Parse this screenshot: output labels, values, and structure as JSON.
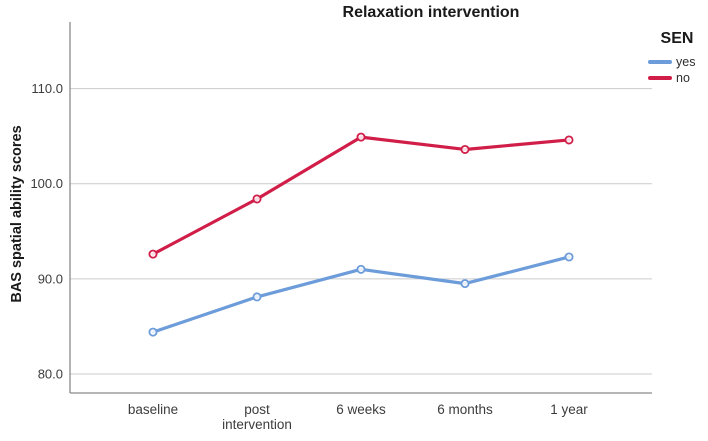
{
  "title": "Relaxation intervention",
  "legend": {
    "title": "SEN",
    "items": [
      {
        "label": "yes",
        "color": "#6c9cd9"
      },
      {
        "label": "no",
        "color": "#d11e49"
      }
    ]
  },
  "y_axis": {
    "title": "BAS spatial ability scores"
  },
  "colors": {
    "gridline": "#cbcbcb",
    "axis_line": "#8a8a8a",
    "tick_text": "#3c3c3c",
    "series_yes": "#6c9cd9",
    "series_no": "#d11e49"
  },
  "chart_data": {
    "type": "line",
    "title": "Relaxation intervention",
    "categories": [
      "baseline",
      "post intervention",
      "6 weeks",
      "6 months",
      "1 year"
    ],
    "category_lines": [
      [
        "baseline"
      ],
      [
        "post",
        "intervention"
      ],
      [
        "6 weeks"
      ],
      [
        "6 months"
      ],
      [
        "1 year"
      ]
    ],
    "series": [
      {
        "name": "yes",
        "color": "#6c9cd9",
        "values": [
          84.4,
          88.1,
          91.0,
          89.5,
          92.3
        ]
      },
      {
        "name": "no",
        "color": "#d11e49",
        "values": [
          92.6,
          98.4,
          104.9,
          103.6,
          104.6
        ]
      }
    ],
    "xlabel": "",
    "ylabel": "BAS spatial ability scores",
    "ylim": [
      78,
      117
    ],
    "yticks": [
      80,
      90,
      100,
      110
    ],
    "ytick_labels": [
      "80.0",
      "90.0",
      "100.0",
      "110.0"
    ],
    "grid": true,
    "legend_title": "SEN",
    "legend_position": "top-right",
    "marker": "open-circle"
  }
}
